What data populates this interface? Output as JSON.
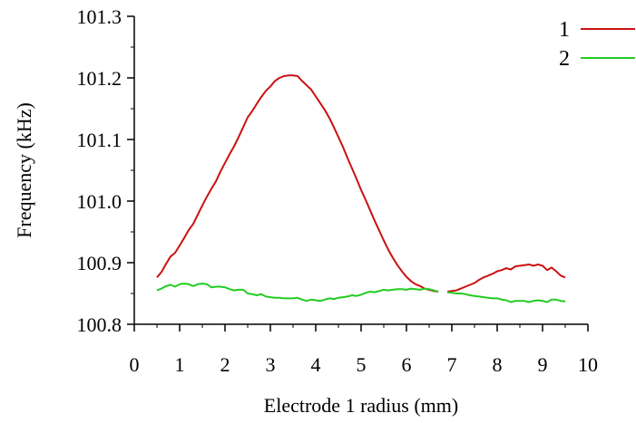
{
  "chart_data": {
    "type": "line",
    "title": "",
    "xlabel": "Electrode 1 radius (mm)",
    "ylabel": "Frequency (kHz)",
    "xlim": [
      0,
      10
    ],
    "ylim": [
      100.8,
      101.3
    ],
    "x_ticks": [
      "0",
      "1",
      "2",
      "3",
      "4",
      "5",
      "6",
      "7",
      "8",
      "9",
      "10"
    ],
    "y_ticks": [
      "100.8",
      "100.9",
      "101.0",
      "101.1",
      "101.2",
      "101.3"
    ],
    "grid": false,
    "legend_position": "top-right",
    "series": [
      {
        "name": "1",
        "color": "#cc1111",
        "segments": [
          {
            "x": [
              0.5,
              0.6,
              0.7,
              0.8,
              0.9,
              1.0,
              1.1,
              1.2,
              1.3,
              1.4,
              1.5,
              1.6,
              1.7,
              1.8,
              1.9,
              2.0,
              2.1,
              2.2,
              2.3,
              2.4,
              2.5,
              2.6,
              2.7,
              2.8,
              2.9,
              3.0,
              3.1,
              3.2,
              3.3,
              3.4,
              3.5,
              3.6,
              3.7,
              3.8,
              3.9,
              4.0,
              4.1,
              4.2,
              4.3,
              4.4,
              4.5,
              4.6,
              4.7,
              4.8,
              4.9,
              5.0,
              5.1,
              5.2,
              5.3,
              5.4,
              5.5,
              5.6,
              5.7,
              5.8,
              5.9,
              6.0,
              6.1,
              6.2,
              6.3,
              6.4,
              6.5,
              6.6,
              6.7
            ],
            "y": [
              100.876,
              100.885,
              100.898,
              100.91,
              100.916,
              100.928,
              100.94,
              100.953,
              100.963,
              100.978,
              100.993,
              101.007,
              101.02,
              101.032,
              101.048,
              101.062,
              101.076,
              101.089,
              101.104,
              101.12,
              101.136,
              101.146,
              101.158,
              101.169,
              101.179,
              101.186,
              101.195,
              101.2,
              101.203,
              101.204,
              101.204,
              101.203,
              101.195,
              101.188,
              101.181,
              101.17,
              101.159,
              101.148,
              101.135,
              101.12,
              101.104,
              101.088,
              101.07,
              101.053,
              101.036,
              101.018,
              101.002,
              100.985,
              100.968,
              100.952,
              100.936,
              100.921,
              100.908,
              100.896,
              100.886,
              100.877,
              100.87,
              100.865,
              100.862,
              100.858,
              100.856,
              100.854,
              100.853
            ]
          },
          {
            "x": [
              6.9,
              7.0,
              7.1,
              7.2,
              7.3,
              7.4,
              7.5,
              7.6,
              7.7,
              7.8,
              7.9,
              8.0,
              8.1,
              8.2,
              8.3,
              8.4,
              8.5,
              8.6,
              8.7,
              8.8,
              8.9,
              9.0,
              9.1,
              9.2,
              9.3,
              9.4,
              9.5
            ],
            "y": [
              100.853,
              100.854,
              100.855,
              100.858,
              100.861,
              100.864,
              100.867,
              100.872,
              100.876,
              100.879,
              100.882,
              100.886,
              100.888,
              100.891,
              100.889,
              100.894,
              100.895,
              100.896,
              100.897,
              100.895,
              100.897,
              100.895,
              100.888,
              100.892,
              100.886,
              100.879,
              100.876
            ]
          }
        ]
      },
      {
        "name": "2",
        "color": "#22cc22",
        "segments": [
          {
            "x": [
              0.5,
              0.6,
              0.7,
              0.8,
              0.9,
              1.0,
              1.1,
              1.2,
              1.3,
              1.4,
              1.5,
              1.6,
              1.7,
              1.8,
              1.9,
              2.0,
              2.1,
              2.2,
              2.3,
              2.4,
              2.5,
              2.6,
              2.7,
              2.8,
              2.9,
              3.0,
              3.1,
              3.2,
              3.3,
              3.4,
              3.5,
              3.6,
              3.7,
              3.8,
              3.9,
              4.0,
              4.1,
              4.2,
              4.3,
              4.4,
              4.5,
              4.6,
              4.7,
              4.8,
              4.9,
              5.0,
              5.1,
              5.2,
              5.3,
              5.4,
              5.5,
              5.6,
              5.7,
              5.8,
              5.9,
              6.0,
              6.1,
              6.2,
              6.3,
              6.4,
              6.5,
              6.6,
              6.7
            ],
            "y": [
              100.855,
              100.858,
              100.862,
              100.864,
              100.861,
              100.865,
              100.866,
              100.865,
              100.862,
              100.865,
              100.866,
              100.865,
              100.86,
              100.861,
              100.861,
              100.86,
              100.857,
              100.855,
              100.856,
              100.856,
              100.85,
              100.849,
              100.847,
              100.849,
              100.845,
              100.844,
              100.843,
              100.843,
              100.842,
              100.842,
              100.842,
              100.843,
              100.84,
              100.838,
              100.84,
              100.839,
              100.838,
              100.84,
              100.842,
              100.841,
              100.843,
              100.844,
              100.845,
              100.847,
              100.846,
              100.848,
              100.851,
              100.853,
              100.852,
              100.854,
              100.856,
              100.855,
              100.856,
              100.857,
              100.857,
              100.856,
              100.858,
              100.857,
              100.856,
              100.858,
              100.857,
              100.855,
              100.853
            ]
          },
          {
            "x": [
              6.9,
              7.0,
              7.1,
              7.2,
              7.3,
              7.4,
              7.5,
              7.6,
              7.7,
              7.8,
              7.9,
              8.0,
              8.1,
              8.2,
              8.3,
              8.4,
              8.5,
              8.6,
              8.7,
              8.8,
              8.9,
              9.0,
              9.1,
              9.2,
              9.3,
              9.4,
              9.5
            ],
            "y": [
              100.852,
              100.851,
              100.85,
              100.85,
              100.849,
              100.847,
              100.846,
              100.845,
              100.844,
              100.843,
              100.842,
              100.842,
              100.84,
              100.839,
              100.836,
              100.838,
              100.838,
              100.838,
              100.836,
              100.838,
              100.839,
              100.838,
              100.836,
              100.84,
              100.84,
              100.838,
              100.837
            ]
          }
        ]
      }
    ]
  }
}
